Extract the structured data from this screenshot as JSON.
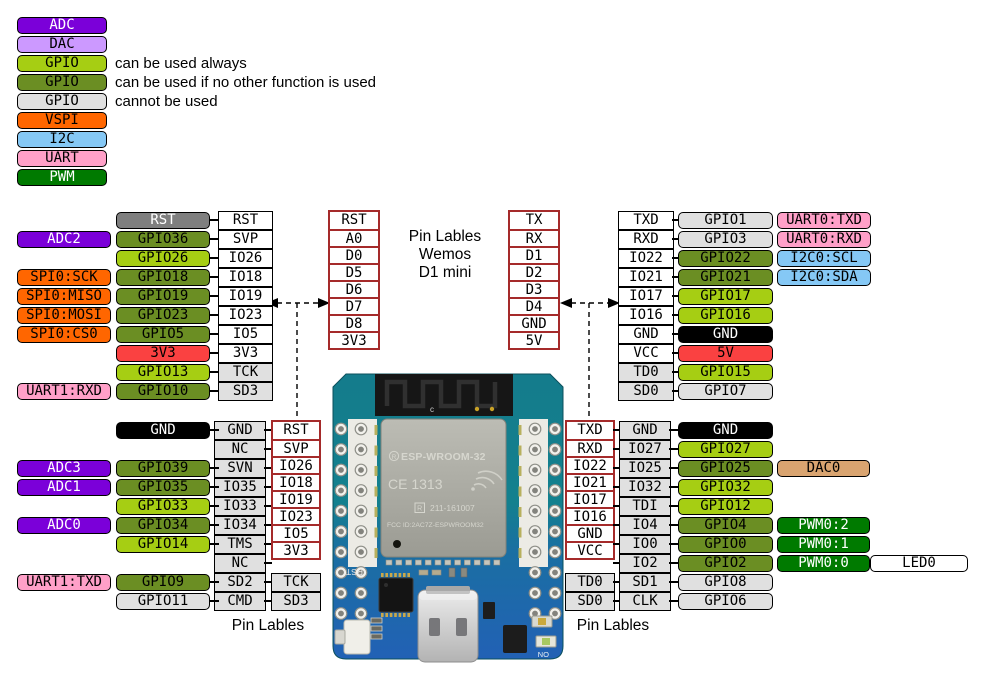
{
  "colors": {
    "adc": {
      "bg": "#7b00d9",
      "fg": "#ffffff"
    },
    "dac": {
      "bg": "#cc99ff",
      "fg": "#000000"
    },
    "gpio_always": {
      "bg": "#a6ce13",
      "fg": "#000000"
    },
    "gpio_other": {
      "bg": "#6b8e23",
      "fg": "#000000"
    },
    "gpio_unusable": {
      "bg": "#e0e0e0",
      "fg": "#000000"
    },
    "vspi": {
      "bg": "#ff6600",
      "fg": "#000000"
    },
    "i2c": {
      "bg": "#85c8f5",
      "fg": "#000000"
    },
    "uart": {
      "bg": "#ffa0c8",
      "fg": "#000000"
    },
    "pwm": {
      "bg": "#007a00",
      "fg": "#ffffff"
    },
    "power": {
      "bg": "#fa4141",
      "fg": "#000000"
    },
    "ground": {
      "bg": "#000000",
      "fg": "#ffffff"
    },
    "reset": {
      "bg": "#7f7f7f",
      "fg": "#ffffff"
    },
    "dac_out": {
      "bg": "#d9a470",
      "fg": "#000000"
    },
    "led": {
      "bg": "#ffffff",
      "fg": "#000000"
    },
    "red_frame": "#a52a2a"
  },
  "legend": {
    "items": [
      {
        "label": "ADC",
        "role": "adc",
        "desc": ""
      },
      {
        "label": "DAC",
        "role": "dac",
        "desc": ""
      },
      {
        "label": "GPIO",
        "role": "gpio_always",
        "desc": "can be used always"
      },
      {
        "label": "GPIO",
        "role": "gpio_other",
        "desc": "can be used if no other function is used"
      },
      {
        "label": "GPIO",
        "role": "gpio_unusable",
        "desc": "cannot be used"
      },
      {
        "label": "VSPI",
        "role": "vspi",
        "desc": ""
      },
      {
        "label": "I2C",
        "role": "i2c",
        "desc": ""
      },
      {
        "label": "UART",
        "role": "uart",
        "desc": ""
      },
      {
        "label": "PWM",
        "role": "pwm",
        "desc": ""
      }
    ]
  },
  "center_title": {
    "line1": "Pin Lables",
    "line2": "Wemos",
    "line3": "D1 mini"
  },
  "bottom_titles": {
    "left": "Pin Lables",
    "right": "Pin Lables"
  },
  "mid_left_column": [
    "RST",
    "A0",
    "D0",
    "D5",
    "D6",
    "D7",
    "D8",
    "3V3"
  ],
  "mid_right_column": [
    "TX",
    "RX",
    "D1",
    "D2",
    "D3",
    "D4",
    "GND",
    "5V"
  ],
  "top_left_table": {
    "rows": [
      {
        "gpio": {
          "label": "RST",
          "role": "reset"
        },
        "pin": {
          "label": "RST"
        }
      },
      {
        "func": {
          "label": "ADC2",
          "role": "adc"
        },
        "gpio": {
          "label": "GPIO36",
          "role": "gpio_other"
        },
        "pin": {
          "label": "SVP"
        }
      },
      {
        "gpio": {
          "label": "GPIO26",
          "role": "gpio_always"
        },
        "pin": {
          "label": "IO26"
        }
      },
      {
        "func": {
          "label": "SPI0:SCK",
          "role": "vspi"
        },
        "gpio": {
          "label": "GPIO18",
          "role": "gpio_other"
        },
        "pin": {
          "label": "IO18"
        }
      },
      {
        "func": {
          "label": "SPI0:MISO",
          "role": "vspi"
        },
        "gpio": {
          "label": "GPIO19",
          "role": "gpio_other"
        },
        "pin": {
          "label": "IO19"
        }
      },
      {
        "func": {
          "label": "SPI0:MOSI",
          "role": "vspi"
        },
        "gpio": {
          "label": "GPIO23",
          "role": "gpio_other"
        },
        "pin": {
          "label": "IO23"
        }
      },
      {
        "func": {
          "label": "SPI0:CS0",
          "role": "vspi"
        },
        "gpio": {
          "label": "GPIO5",
          "role": "gpio_other"
        },
        "pin": {
          "label": "IO5"
        }
      },
      {
        "gpio": {
          "label": "3V3",
          "role": "power"
        },
        "pin": {
          "label": "3V3"
        }
      },
      {
        "gpio": {
          "label": "GPIO13",
          "role": "gpio_always"
        },
        "pin": {
          "label": "TCK",
          "gray": true
        }
      },
      {
        "func": {
          "label": "UART1:RXD",
          "role": "uart"
        },
        "gpio": {
          "label": "GPIO10",
          "role": "gpio_other"
        },
        "pin": {
          "label": "SD3",
          "gray": true
        }
      }
    ]
  },
  "top_right_table": {
    "rows": [
      {
        "pin": {
          "label": "TXD"
        },
        "gpio": {
          "label": "GPIO1",
          "role": "gpio_unusable"
        },
        "func": {
          "label": "UART0:TXD",
          "role": "uart"
        }
      },
      {
        "pin": {
          "label": "RXD"
        },
        "gpio": {
          "label": "GPIO3",
          "role": "gpio_unusable"
        },
        "func": {
          "label": "UART0:RXD",
          "role": "uart"
        }
      },
      {
        "pin": {
          "label": "IO22"
        },
        "gpio": {
          "label": "GPIO22",
          "role": "gpio_other"
        },
        "func": {
          "label": "I2C0:SCL",
          "role": "i2c"
        }
      },
      {
        "pin": {
          "label": "IO21"
        },
        "gpio": {
          "label": "GPIO21",
          "role": "gpio_other"
        },
        "func": {
          "label": "I2C0:SDA",
          "role": "i2c"
        }
      },
      {
        "pin": {
          "label": "IO17"
        },
        "gpio": {
          "label": "GPIO17",
          "role": "gpio_always"
        }
      },
      {
        "pin": {
          "label": "IO16"
        },
        "gpio": {
          "label": "GPIO16",
          "role": "gpio_always"
        }
      },
      {
        "pin": {
          "label": "GND"
        },
        "gpio": {
          "label": "GND",
          "role": "ground"
        }
      },
      {
        "pin": {
          "label": "VCC"
        },
        "gpio": {
          "label": "5V",
          "role": "power"
        }
      },
      {
        "pin": {
          "label": "TD0",
          "gray": true
        },
        "gpio": {
          "label": "GPIO15",
          "role": "gpio_always"
        }
      },
      {
        "pin": {
          "label": "SD0",
          "gray": true
        },
        "gpio": {
          "label": "GPIO7",
          "role": "gpio_unusable"
        }
      }
    ]
  },
  "bottom_left_table": {
    "red_col": [
      "RST",
      "SVP",
      "IO26",
      "IO18",
      "IO19",
      "IO23",
      "IO5",
      "3V3"
    ],
    "tail": [
      "TCK",
      "SD3"
    ],
    "rows": [
      {
        "gpio": {
          "label": "GND",
          "role": "ground"
        },
        "pin": {
          "label": "GND",
          "gray": true
        }
      },
      {
        "pin": {
          "label": "NC",
          "gray": true
        }
      },
      {
        "func": {
          "label": "ADC3",
          "role": "adc"
        },
        "gpio": {
          "label": "GPIO39",
          "role": "gpio_other"
        },
        "pin": {
          "label": "SVN",
          "gray": true
        }
      },
      {
        "func": {
          "label": "ADC1",
          "role": "adc"
        },
        "gpio": {
          "label": "GPIO35",
          "role": "gpio_other"
        },
        "pin": {
          "label": "IO35",
          "gray": true
        }
      },
      {
        "gpio": {
          "label": "GPIO33",
          "role": "gpio_always"
        },
        "pin": {
          "label": "IO33",
          "gray": true
        }
      },
      {
        "func": {
          "label": "ADC0",
          "role": "adc"
        },
        "gpio": {
          "label": "GPIO34",
          "role": "gpio_other"
        },
        "pin": {
          "label": "IO34",
          "gray": true
        }
      },
      {
        "gpio": {
          "label": "GPIO14",
          "role": "gpio_always"
        },
        "pin": {
          "label": "TMS",
          "gray": true
        }
      },
      {
        "pin": {
          "label": "NC",
          "gray": true
        }
      },
      {
        "func": {
          "label": "UART1:TXD",
          "role": "uart"
        },
        "gpio": {
          "label": "GPIO9",
          "role": "gpio_other"
        },
        "pin": {
          "label": "SD2",
          "gray": true
        }
      },
      {
        "gpio": {
          "label": "GPIO11",
          "role": "gpio_unusable"
        },
        "pin": {
          "label": "CMD",
          "gray": true
        }
      }
    ]
  },
  "bottom_right_table": {
    "red_col": [
      "TXD",
      "RXD",
      "IO22",
      "IO21",
      "IO17",
      "IO16",
      "GND",
      "VCC"
    ],
    "tail": [
      "TD0",
      "SD0"
    ],
    "rows": [
      {
        "pin": {
          "label": "GND",
          "gray": true
        },
        "gpio": {
          "label": "GND",
          "role": "ground"
        }
      },
      {
        "pin": {
          "label": "IO27",
          "gray": true
        },
        "gpio": {
          "label": "GPIO27",
          "role": "gpio_always"
        }
      },
      {
        "pin": {
          "label": "IO25",
          "gray": true
        },
        "gpio": {
          "label": "GPIO25",
          "role": "gpio_other"
        },
        "func": {
          "label": "DAC0",
          "role": "dac_out"
        }
      },
      {
        "pin": {
          "label": "IO32",
          "gray": true
        },
        "gpio": {
          "label": "GPIO32",
          "role": "gpio_always"
        }
      },
      {
        "pin": {
          "label": "TDI",
          "gray": true
        },
        "gpio": {
          "label": "GPIO12",
          "role": "gpio_always"
        }
      },
      {
        "pin": {
          "label": "IO4",
          "gray": true
        },
        "gpio": {
          "label": "GPIO4",
          "role": "gpio_other"
        },
        "func": {
          "label": "PWM0:2",
          "role": "pwm"
        }
      },
      {
        "pin": {
          "label": "IO0",
          "gray": true
        },
        "gpio": {
          "label": "GPIO0",
          "role": "gpio_other"
        },
        "func": {
          "label": "PWM0:1",
          "role": "pwm"
        }
      },
      {
        "pin": {
          "label": "IO2",
          "gray": true
        },
        "gpio": {
          "label": "GPIO2",
          "role": "gpio_other"
        },
        "func": {
          "label": "PWM0:0",
          "role": "pwm"
        },
        "led": {
          "label": "LED0",
          "role": "led"
        }
      },
      {
        "pin": {
          "label": "SD1",
          "gray": true
        },
        "gpio": {
          "label": "GPIO8",
          "role": "gpio_unusable"
        }
      },
      {
        "pin": {
          "label": "CLK",
          "gray": true
        },
        "gpio": {
          "label": "GPIO6",
          "role": "gpio_unusable"
        }
      }
    ]
  },
  "board": {
    "module": "ESP-WROOM-32",
    "reg_mark": "R",
    "ce": "CE 1313",
    "cert_mark": "R",
    "cert": "211-161007",
    "fcc": "FCC ID:2AC7Z-ESPWROOM32",
    "rst": "RST",
    "on": "ON",
    "antenna_mark": "c"
  }
}
